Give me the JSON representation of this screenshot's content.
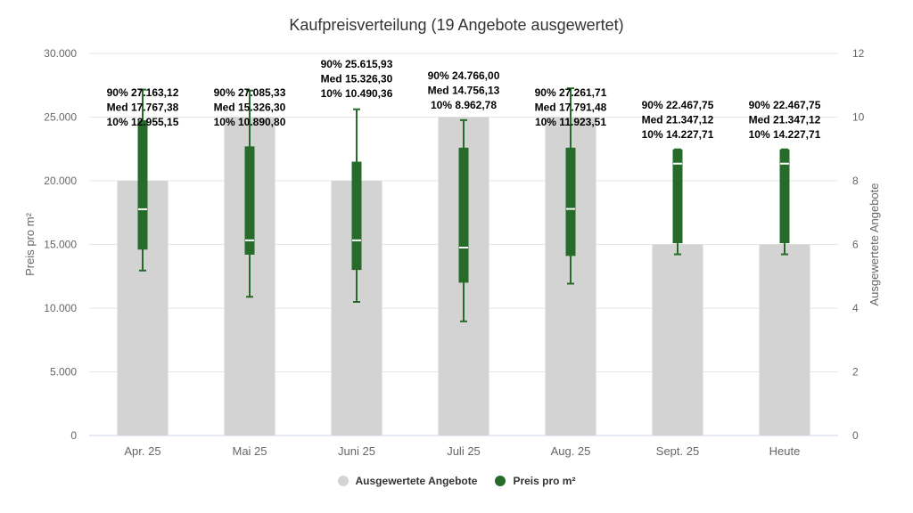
{
  "title": "Kaufpreisverteilung (19 Angebote ausgewertet)",
  "legend": {
    "items": [
      {
        "label": "Ausgewertete Angebote",
        "color": "#d3d3d3"
      },
      {
        "label": "Preis pro m²",
        "color": "#266b2a"
      }
    ]
  },
  "colors": {
    "bar": "#d3d3d3",
    "box": "#266b2a",
    "median": "#ffffff",
    "grid": "#e6e6e6",
    "axis_text": "#666666",
    "label_text": "#000000"
  },
  "chart_data": {
    "type": "bar+boxplot",
    "title": "Kaufpreisverteilung (19 Angebote ausgewertet)",
    "categories": [
      "Apr. 25",
      "Mai 25",
      "Juni 25",
      "Juli 25",
      "Aug. 25",
      "Sept. 25",
      "Heute"
    ],
    "left_axis": {
      "label": "Preis pro m²",
      "min": 0,
      "max": 30000,
      "ticks": [
        "0",
        "5.000",
        "10.000",
        "15.000",
        "20.000",
        "25.000",
        "30.000"
      ]
    },
    "right_axis": {
      "label": "Ausgewertete Angebote",
      "min": 0,
      "max": 12,
      "ticks": [
        "0",
        "2",
        "4",
        "6",
        "8",
        "10",
        "12"
      ]
    },
    "grid": true,
    "legend_position": "bottom",
    "series": [
      {
        "name": "Ausgewertete Angebote",
        "type": "bar",
        "axis": "right",
        "values": [
          8,
          10,
          8,
          10,
          10,
          6,
          6
        ]
      },
      {
        "name": "Preis pro m²",
        "type": "boxplot",
        "axis": "left",
        "values": [
          {
            "p10": 12955.15,
            "q1": 14600,
            "median": 17767.38,
            "q3": 24750,
            "p90": 27163.12
          },
          {
            "p10": 10890.8,
            "q1": 14200,
            "median": 15326.3,
            "q3": 22700,
            "p90": 27085.33
          },
          {
            "p10": 10490.36,
            "q1": 13000,
            "median": 15326.3,
            "q3": 21500,
            "p90": 25615.93
          },
          {
            "p10": 8962.78,
            "q1": 12000,
            "median": 14756.13,
            "q3": 22600,
            "p90": 24766.0
          },
          {
            "p10": 11923.51,
            "q1": 14100,
            "median": 17791.48,
            "q3": 22600,
            "p90": 27261.71
          },
          {
            "p10": 14227.71,
            "q1": 15100,
            "median": 21347.12,
            "q3": 22467.75,
            "p90": 22467.75
          },
          {
            "p10": 14227.71,
            "q1": 15100,
            "median": 21347.12,
            "q3": 22467.75,
            "p90": 22467.75
          }
        ]
      }
    ],
    "annotations": [
      [
        "90% 27.163,12",
        "Med 17.767,38",
        "10% 12.955,15"
      ],
      [
        "90% 27.085,33",
        "Med 15.326,30",
        "10% 10.890,80"
      ],
      [
        "90% 25.615,93",
        "Med 15.326,30",
        "10% 10.490,36"
      ],
      [
        "90% 24.766,00",
        "Med 14.756,13",
        "10% 8.962,78"
      ],
      [
        "90% 27.261,71",
        "Med 17.791,48",
        "10% 11.923,51"
      ],
      [
        "90% 22.467,75",
        "Med 21.347,12",
        "10% 14.227,71"
      ],
      [
        "90% 22.467,75",
        "Med 21.347,12",
        "10% 14.227,71"
      ]
    ]
  }
}
